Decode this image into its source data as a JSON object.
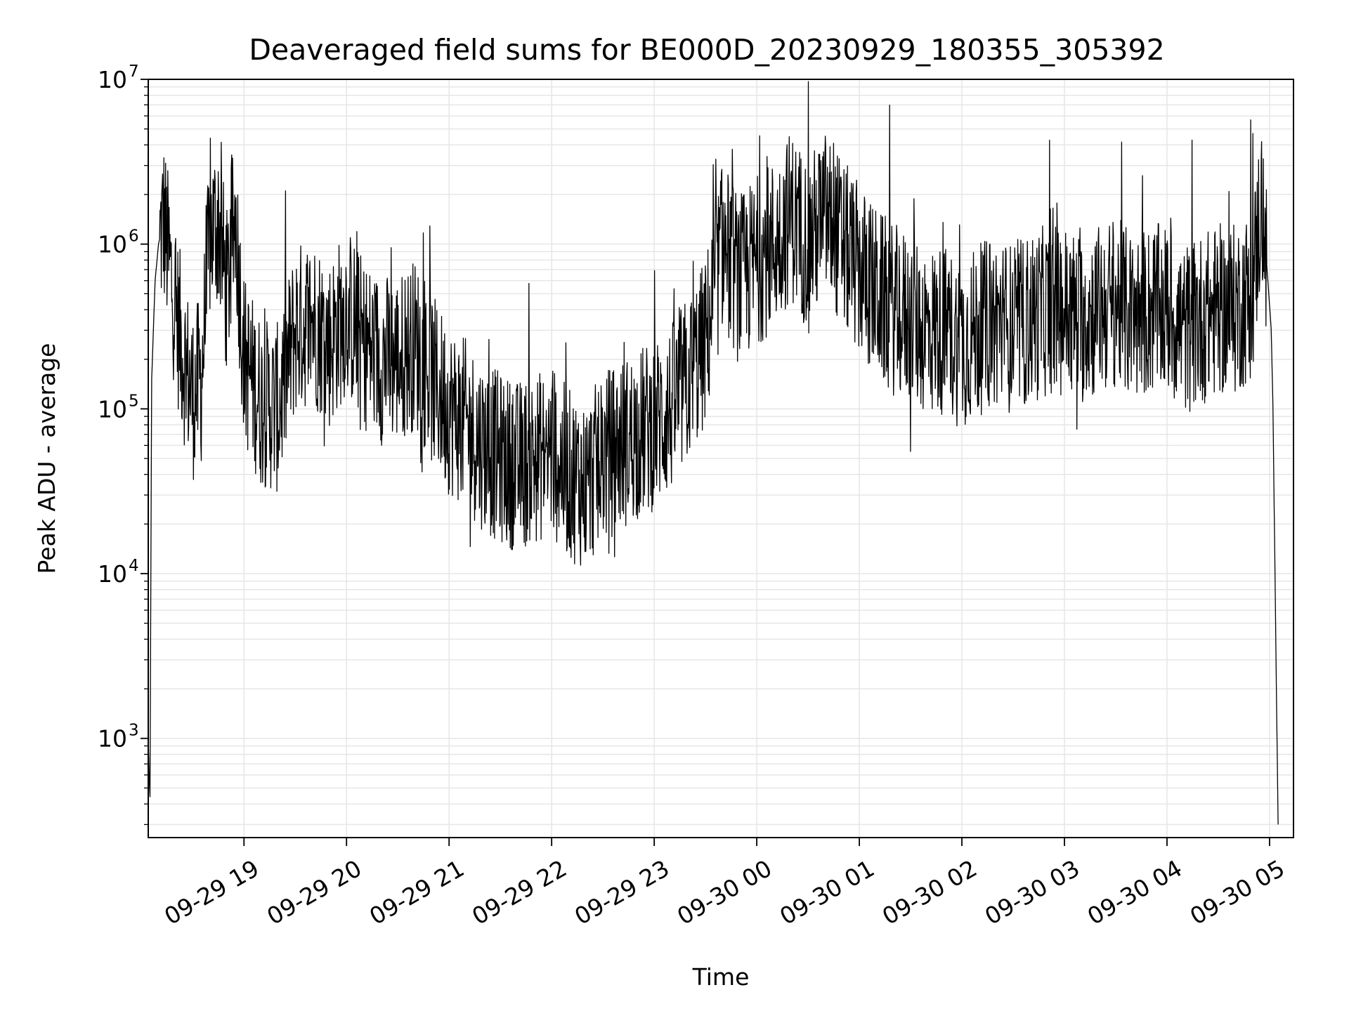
{
  "chart_data": {
    "type": "line",
    "title": "Deaveraged field sums for BE000D_20230929_180355_305392",
    "xlabel": "Time",
    "ylabel": "Peak ADU - average",
    "yscale": "log",
    "ylim": [
      250,
      10000000
    ],
    "xlim": [
      "2023-09-29 18:04",
      "2023-09-30 05:14"
    ],
    "grid": true,
    "line_color": "#000000",
    "grid_color": "#e6e6e6",
    "x_ticks": [
      {
        "value": "2023-09-29 19:00",
        "label": "09-29 19"
      },
      {
        "value": "2023-09-29 20:00",
        "label": "09-29 20"
      },
      {
        "value": "2023-09-29 21:00",
        "label": "09-29 21"
      },
      {
        "value": "2023-09-29 22:00",
        "label": "09-29 22"
      },
      {
        "value": "2023-09-29 23:00",
        "label": "09-29 23"
      },
      {
        "value": "2023-09-30 00:00",
        "label": "09-30 00"
      },
      {
        "value": "2023-09-30 01:00",
        "label": "09-30 01"
      },
      {
        "value": "2023-09-30 02:00",
        "label": "09-30 02"
      },
      {
        "value": "2023-09-30 03:00",
        "label": "09-30 03"
      },
      {
        "value": "2023-09-30 04:00",
        "label": "09-30 04"
      },
      {
        "value": "2023-09-30 05:00",
        "label": "09-30 05"
      }
    ],
    "y_ticks": [
      {
        "value": 1000,
        "base": "10",
        "exp": "3"
      },
      {
        "value": 10000,
        "base": "10",
        "exp": "4"
      },
      {
        "value": 100000,
        "base": "10",
        "exp": "5"
      },
      {
        "value": 1000000,
        "base": "10",
        "exp": "6"
      },
      {
        "value": 10000000,
        "base": "10",
        "exp": "7"
      }
    ],
    "series": [
      {
        "x": [
          "2023-09-29 18:04",
          "2023-09-29 18:05",
          "2023-09-29 18:06",
          "2023-09-29 18:08",
          "2023-09-29 18:10",
          "2023-09-29 18:13",
          "2023-09-29 18:16",
          "2023-09-29 18:20",
          "2023-09-29 18:25",
          "2023-09-29 18:30",
          "2023-09-29 18:35",
          "2023-09-29 18:40",
          "2023-09-29 18:45",
          "2023-09-29 18:50",
          "2023-09-29 18:55",
          "2023-09-29 19:00",
          "2023-09-29 19:10",
          "2023-09-29 19:20",
          "2023-09-29 19:30",
          "2023-09-29 19:40",
          "2023-09-29 19:50",
          "2023-09-29 20:00",
          "2023-09-29 20:10",
          "2023-09-29 20:20",
          "2023-09-29 20:30",
          "2023-09-29 20:40",
          "2023-09-29 20:50",
          "2023-09-29 21:00",
          "2023-09-29 21:10",
          "2023-09-29 21:20",
          "2023-09-29 21:30",
          "2023-09-29 21:40",
          "2023-09-29 21:50",
          "2023-09-29 22:00",
          "2023-09-29 22:10",
          "2023-09-29 22:20",
          "2023-09-29 22:30",
          "2023-09-29 22:40",
          "2023-09-29 22:50",
          "2023-09-29 23:00",
          "2023-09-29 23:10",
          "2023-09-29 23:20",
          "2023-09-29 23:30",
          "2023-09-29 23:40",
          "2023-09-29 23:50",
          "2023-09-30 00:00",
          "2023-09-30 00:10",
          "2023-09-30 00:20",
          "2023-09-30 00:30",
          "2023-09-30 00:40",
          "2023-09-30 00:50",
          "2023-09-30 01:00",
          "2023-09-30 01:10",
          "2023-09-30 01:20",
          "2023-09-30 01:30",
          "2023-09-30 01:40",
          "2023-09-30 01:50",
          "2023-09-30 02:00",
          "2023-09-30 02:10",
          "2023-09-30 02:20",
          "2023-09-30 02:30",
          "2023-09-30 02:40",
          "2023-09-30 02:50",
          "2023-09-30 03:00",
          "2023-09-30 03:10",
          "2023-09-30 03:20",
          "2023-09-30 03:30",
          "2023-09-30 03:40",
          "2023-09-30 03:50",
          "2023-09-30 04:00",
          "2023-09-30 04:10",
          "2023-09-30 04:20",
          "2023-09-30 04:30",
          "2023-09-30 04:40",
          "2023-09-30 04:50",
          "2023-09-30 04:55",
          "2023-09-30 04:57",
          "2023-09-30 04:59",
          "2023-09-30 05:01",
          "2023-09-30 05:02",
          "2023-09-30 05:04",
          "2023-09-30 05:05"
        ],
        "y": [
          1000,
          400,
          150000,
          600000,
          1000000,
          1400000,
          800000,
          400000,
          200000,
          120000,
          150000,
          1100000,
          1400000,
          500000,
          1500000,
          200000,
          110000,
          100000,
          300000,
          350000,
          250000,
          400000,
          250000,
          200000,
          200000,
          250000,
          150000,
          100000,
          80000,
          60000,
          50000,
          45000,
          50000,
          55000,
          40000,
          35000,
          50000,
          60000,
          70000,
          80000,
          100000,
          150000,
          250000,
          1000000,
          600000,
          800000,
          1000000,
          1500000,
          1000000,
          1500000,
          1000000,
          700000,
          500000,
          400000,
          350000,
          300000,
          300000,
          250000,
          300000,
          350000,
          300000,
          350000,
          400000,
          400000,
          350000,
          400000,
          450000,
          350000,
          400000,
          400000,
          300000,
          350000,
          400000,
          400000,
          500000,
          1800000,
          1200000,
          600000,
          300000,
          100000,
          2000,
          300
        ]
      }
    ]
  }
}
